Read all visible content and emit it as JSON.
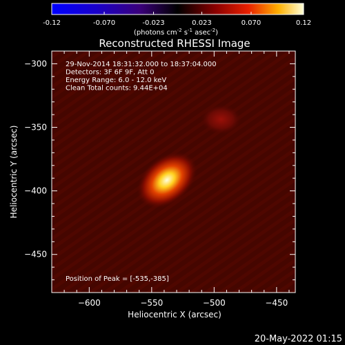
{
  "colorbar": {
    "ticks": [
      "-0.12",
      "-0.070",
      "-0.023",
      "0.023",
      "0.070",
      "0.12"
    ],
    "min": -0.12,
    "max": 0.12,
    "unit_label_main": "(photons cm",
    "unit_sup1": "-2",
    "unit_mid": " s",
    "unit_sup2": "-1",
    "unit_end": " asec",
    "unit_sup3": "-2",
    "unit_close": ")"
  },
  "chart_data": {
    "type": "heatmap",
    "title": "Reconstructed RHESSI Image",
    "xlabel": "Heliocentric X (arcsec)",
    "ylabel": "Heliocentric Y (arcsec)",
    "xlim": [
      -630,
      -435
    ],
    "ylim": [
      -480,
      -290
    ],
    "x_ticks": [
      -600,
      -550,
      -500,
      -450
    ],
    "y_ticks": [
      -300,
      -350,
      -400,
      -450
    ],
    "annotations": [
      "29-Nov-2014 18:31:32.000 to 18:37:04.000",
      "Detectors: 3F 6F 9F, Att 0",
      "Energy Range: 6.0 - 12.0 keV",
      "Clean    Total counts: 9.44E+04"
    ],
    "peak_label": "Position of Peak = [-535,-385]",
    "sources": [
      {
        "x": -535,
        "y": -385,
        "peak": 0.12
      },
      {
        "x": -500,
        "y": -360,
        "peak": 0.03
      }
    ]
  },
  "footer": {
    "timestamp": "20-May-2022 01:15"
  }
}
